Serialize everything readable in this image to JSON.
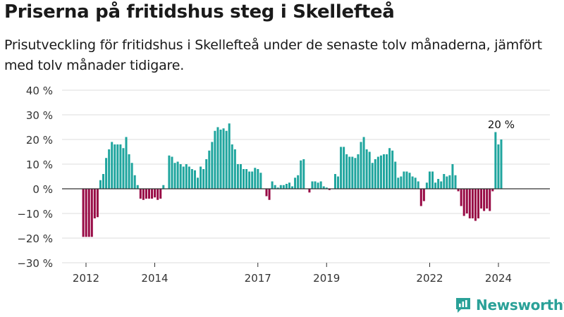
{
  "title": "Priserna på fritidshus steg i Skellefteå",
  "subtitle": "Prisutveckling för fritidshus i Skellefteå under de senaste tolv månaderna, jämfört med tolv månader tidigare.",
  "brand": {
    "name": "Newsworthy",
    "icon": "newsworthy-logo-icon",
    "color": "#2aa198"
  },
  "colors": {
    "positive": "#1fa59e",
    "negative": "#980a45",
    "grid": "#dddddd",
    "zero": "#333333",
    "text": "#333333"
  },
  "chart_data": {
    "type": "bar",
    "title": "Priserna på fritidshus steg i Skellefteå",
    "ylim": [
      -30,
      40
    ],
    "yticks": [
      -30,
      -20,
      -10,
      0,
      10,
      20,
      30,
      40
    ],
    "ytick_labels": [
      "−30 %",
      "−20 %",
      "−10 %",
      "0 %",
      "10 %",
      "20 %",
      "30 %",
      "40 %"
    ],
    "xtick_labels": [
      "2012",
      "2014",
      "2017",
      "2019",
      "2022",
      "2024"
    ],
    "xtick_positions": [
      2012.0,
      2014.0,
      2017.0,
      2019.0,
      2022.0,
      2024.0
    ],
    "x_start": 2011.92,
    "x_step": 0.0833,
    "grid": true,
    "annotation": {
      "text": "20 %",
      "value": 20
    },
    "values": [
      -19.5,
      -19.5,
      -19.5,
      -19.5,
      -12,
      -11.5,
      3.5,
      6,
      12.5,
      16,
      19,
      18,
      18,
      18,
      16.5,
      21,
      14,
      10.5,
      5.5,
      1.5,
      -4,
      -4.5,
      -4,
      -4,
      -4,
      -3.5,
      -4.5,
      -4,
      1.5,
      0,
      13.5,
      13,
      10.5,
      11,
      10,
      9,
      10,
      9,
      8,
      7.5,
      4.5,
      9,
      8,
      12,
      15.5,
      19,
      23.5,
      25,
      24,
      24.5,
      23.5,
      26.5,
      18,
      16,
      10,
      10,
      8,
      8,
      7,
      7,
      8.5,
      8,
      6.5,
      0,
      -3,
      -4.5,
      3,
      1.5,
      0.5,
      1.5,
      1.5,
      2,
      2.5,
      1,
      4.5,
      5.5,
      11.5,
      12,
      0,
      -1.5,
      3,
      3,
      2.5,
      3,
      1,
      0.5,
      -0.5,
      0,
      6,
      5,
      17,
      17,
      14,
      13,
      13,
      12.5,
      14,
      19,
      21,
      16,
      15,
      10.5,
      12,
      13,
      13.5,
      14,
      14,
      16.5,
      15.5,
      11,
      4.5,
      5,
      7,
      7,
      6.5,
      5,
      4.5,
      3,
      -7,
      -5,
      2.5,
      7,
      7,
      2.5,
      4,
      3,
      6,
      5,
      5.5,
      10,
      5.5,
      -1,
      -7,
      -11,
      -10,
      -12,
      -12,
      -13,
      -12,
      -8,
      -9,
      -8,
      -9,
      -1,
      23,
      18,
      20
    ]
  }
}
